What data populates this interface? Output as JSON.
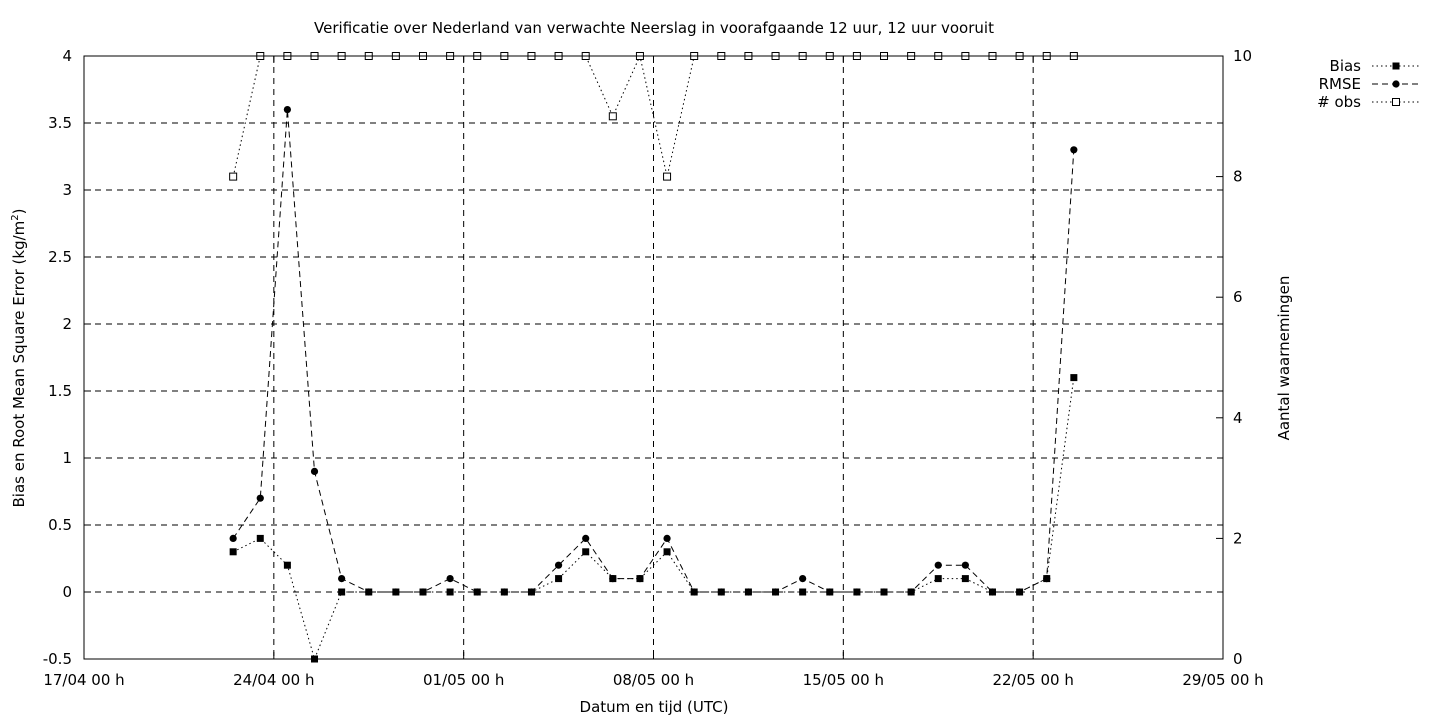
{
  "chart_data": {
    "type": "line",
    "title": "Verificatie over Nederland van verwachte Neerslag in voorafgaande 12 uur, 12 uur vooruit",
    "xlabel": "Datum en tijd (UTC)",
    "ylabel_main": "Bias en Root Mean Square Error (kg/m",
    "ylabel_sup": "2",
    "ylabel_close": ")",
    "y2label": "Aantal waarnemingen",
    "xlim": [
      "2021-04-17 00:00",
      "2021-05-29 00:00"
    ],
    "ylim": [
      -0.5,
      4
    ],
    "y2lim": [
      0,
      10
    ],
    "grid": true,
    "legend_position": "top-right",
    "x_tick_labels": [
      "17/04 00 h",
      "24/04 00 h",
      "01/05 00 h",
      "08/05 00 h",
      "15/05 00 h",
      "22/05 00 h",
      "29/05 00 h"
    ],
    "y_tick_labels": [
      "-0.5",
      "0",
      "0.5",
      "1",
      "1.5",
      "2",
      "2.5",
      "3",
      "3.5",
      "4"
    ],
    "y2_tick_labels": [
      "0",
      "2",
      "4",
      "6",
      "8",
      "10"
    ],
    "x_days_between_ticks": 7,
    "x": [
      "22/04 12 h",
      "23/04 12 h",
      "24/04 12 h",
      "25/04 12 h",
      "26/04 12 h",
      "27/04 12 h",
      "28/04 12 h",
      "29/04 12 h",
      "30/04 12 h",
      "01/05 12 h",
      "02/05 12 h",
      "03/05 12 h",
      "04/05 12 h",
      "05/05 12 h",
      "06/05 12 h",
      "07/05 12 h",
      "08/05 12 h",
      "09/05 12 h",
      "10/05 12 h",
      "11/05 12 h",
      "12/05 12 h",
      "13/05 12 h",
      "14/05 12 h",
      "15/05 12 h",
      "16/05 12 h",
      "17/05 12 h",
      "18/05 12 h",
      "19/05 12 h",
      "20/05 12 h",
      "21/05 12 h",
      "22/05 12 h",
      "23/05 12 h"
    ],
    "series": [
      {
        "name": "Bias",
        "axis": "left",
        "values": [
          0.3,
          0.4,
          0.2,
          -0.5,
          0,
          0,
          0,
          0,
          0,
          0,
          0,
          0,
          0.1,
          0.3,
          0.1,
          0.1,
          0.3,
          0,
          0,
          0,
          0,
          0,
          0,
          0,
          0,
          0,
          0.1,
          0.1,
          0,
          0,
          0.1,
          1.6
        ]
      },
      {
        "name": "RMSE",
        "axis": "left",
        "values": [
          0.4,
          0.7,
          3.6,
          0.9,
          0.1,
          0,
          0,
          0,
          0.1,
          0,
          0,
          0,
          0.2,
          0.4,
          0.1,
          0.1,
          0.4,
          0,
          0,
          0,
          0,
          0.1,
          0,
          0,
          0,
          0,
          0.2,
          0.2,
          0,
          0,
          0.1,
          3.3
        ]
      },
      {
        "name": "# obs",
        "axis": "right",
        "values": [
          8,
          10,
          10,
          10,
          10,
          10,
          10,
          10,
          10,
          10,
          10,
          10,
          10,
          10,
          9,
          10,
          8,
          10,
          10,
          10,
          10,
          10,
          10,
          10,
          10,
          10,
          10,
          10,
          10,
          10,
          10,
          10
        ]
      }
    ]
  }
}
